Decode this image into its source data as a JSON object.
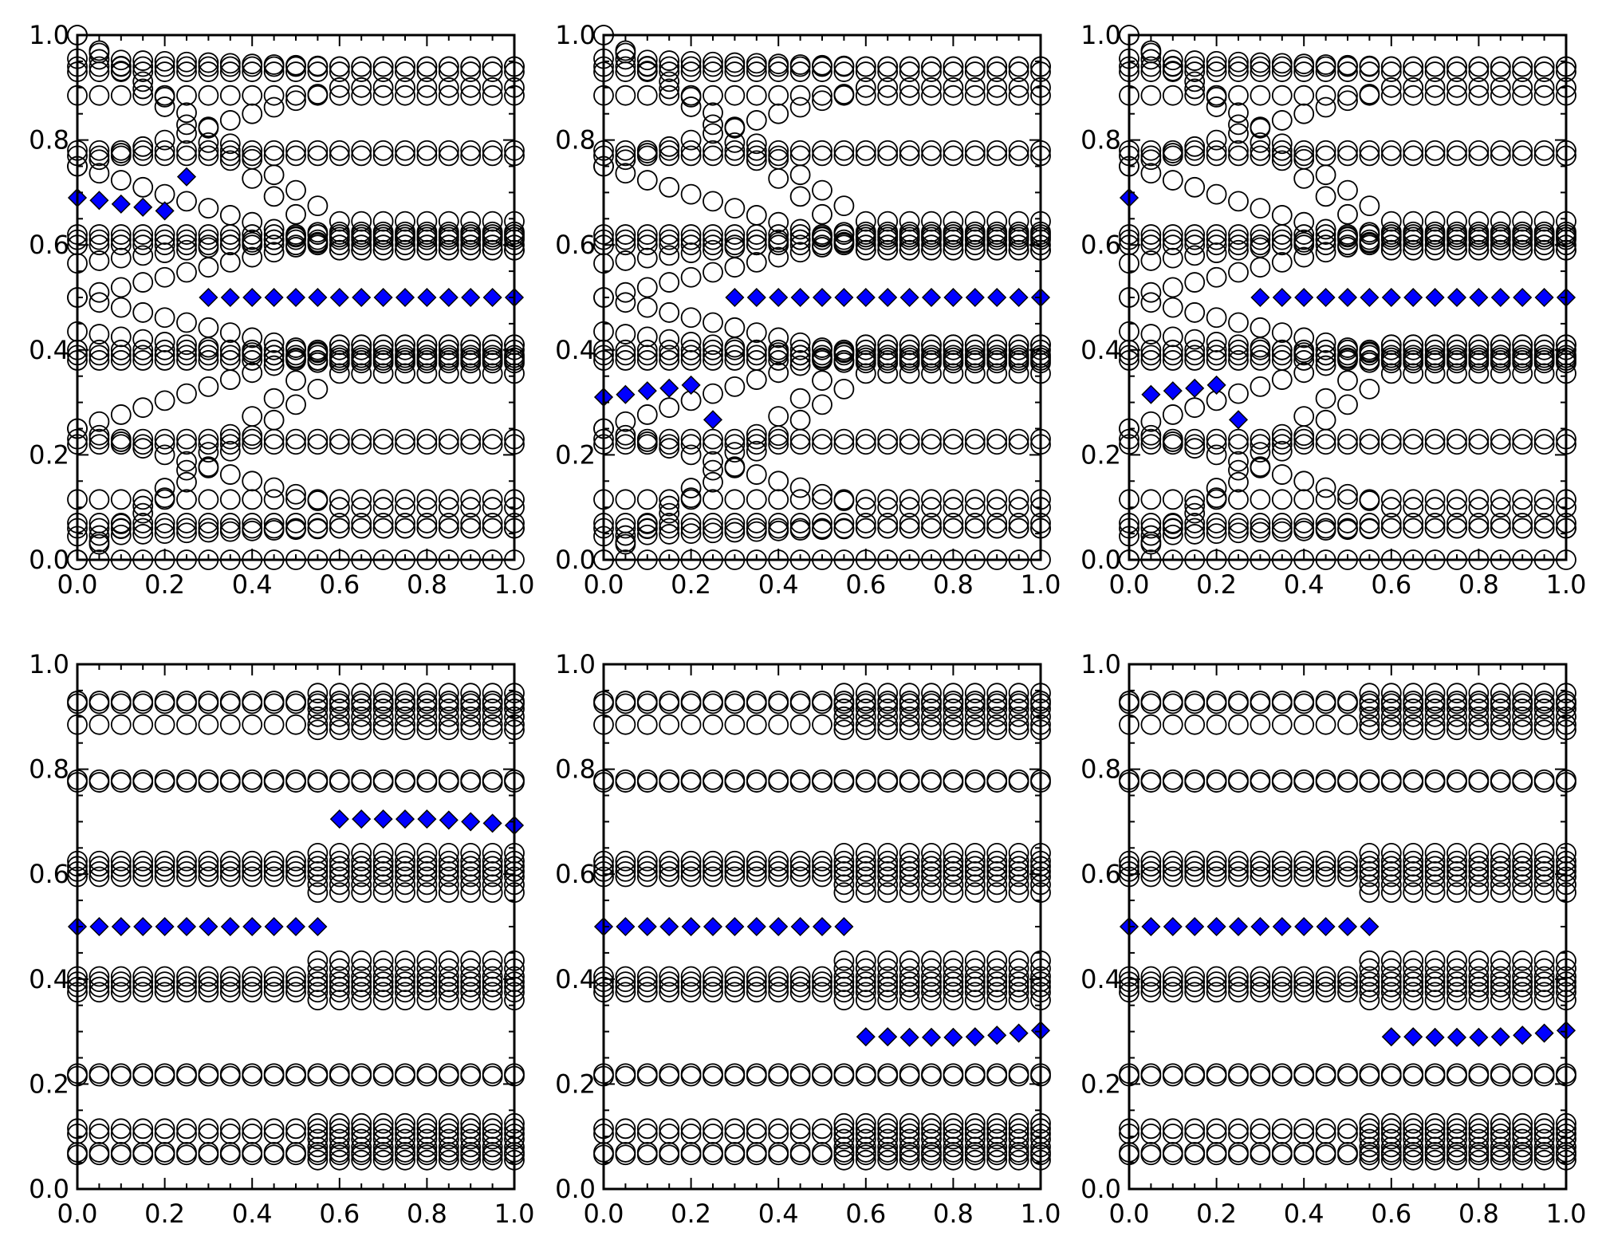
{
  "chart_data": {
    "type": "scatter",
    "layout": "2 rows x 3 columns of panels",
    "xlim": [
      0.0,
      1.0
    ],
    "ylim": [
      0.0,
      1.0
    ],
    "xticks": [
      "0.0",
      "0.2",
      "0.4",
      "0.6",
      "0.8",
      "1.0"
    ],
    "yticks": [
      "0.0",
      "0.2",
      "0.4",
      "0.6",
      "0.8",
      "1.0"
    ],
    "x_samples": [
      0.0,
      0.05,
      0.1,
      0.15,
      0.2,
      0.25,
      0.3,
      0.35,
      0.4,
      0.45,
      0.5,
      0.55,
      0.6,
      0.65,
      0.7,
      0.75,
      0.8,
      0.85,
      0.9,
      0.95,
      1.0
    ],
    "colors": {
      "circle_series": "#000000",
      "highlight_series": "#0000ff"
    },
    "panels": [
      {
        "id": "top-left",
        "circle_pattern": "bifurcating",
        "highlighted": [
          [
            0.0,
            0.69
          ],
          [
            0.05,
            0.685
          ],
          [
            0.1,
            0.678
          ],
          [
            0.15,
            0.672
          ],
          [
            0.2,
            0.665
          ],
          [
            0.25,
            0.73
          ],
          [
            0.3,
            0.5
          ],
          [
            0.35,
            0.5
          ],
          [
            0.4,
            0.5
          ],
          [
            0.45,
            0.5
          ],
          [
            0.5,
            0.5
          ],
          [
            0.55,
            0.5
          ],
          [
            0.6,
            0.5
          ],
          [
            0.65,
            0.5
          ],
          [
            0.7,
            0.5
          ],
          [
            0.75,
            0.5
          ],
          [
            0.8,
            0.5
          ],
          [
            0.85,
            0.5
          ],
          [
            0.9,
            0.5
          ],
          [
            0.95,
            0.5
          ],
          [
            1.0,
            0.5
          ]
        ]
      },
      {
        "id": "top-middle",
        "circle_pattern": "bifurcating",
        "highlighted": [
          [
            0.0,
            0.31
          ],
          [
            0.05,
            0.315
          ],
          [
            0.1,
            0.322
          ],
          [
            0.15,
            0.327
          ],
          [
            0.2,
            0.333
          ],
          [
            0.25,
            0.267
          ],
          [
            0.3,
            0.5
          ],
          [
            0.35,
            0.5
          ],
          [
            0.4,
            0.5
          ],
          [
            0.45,
            0.5
          ],
          [
            0.5,
            0.5
          ],
          [
            0.55,
            0.5
          ],
          [
            0.6,
            0.5
          ],
          [
            0.65,
            0.5
          ],
          [
            0.7,
            0.5
          ],
          [
            0.75,
            0.5
          ],
          [
            0.8,
            0.5
          ],
          [
            0.85,
            0.5
          ],
          [
            0.9,
            0.5
          ],
          [
            0.95,
            0.5
          ],
          [
            1.0,
            0.5
          ]
        ]
      },
      {
        "id": "top-right",
        "circle_pattern": "bifurcating",
        "highlighted": [
          [
            0.0,
            0.69
          ],
          [
            0.05,
            0.315
          ],
          [
            0.1,
            0.322
          ],
          [
            0.15,
            0.327
          ],
          [
            0.2,
            0.333
          ],
          [
            0.25,
            0.267
          ],
          [
            0.3,
            0.5
          ],
          [
            0.35,
            0.5
          ],
          [
            0.4,
            0.5
          ],
          [
            0.45,
            0.5
          ],
          [
            0.5,
            0.5
          ],
          [
            0.55,
            0.5
          ],
          [
            0.6,
            0.5
          ],
          [
            0.65,
            0.5
          ],
          [
            0.7,
            0.5
          ],
          [
            0.75,
            0.5
          ],
          [
            0.8,
            0.5
          ],
          [
            0.85,
            0.5
          ],
          [
            0.9,
            0.5
          ],
          [
            0.95,
            0.5
          ],
          [
            1.0,
            0.5
          ]
        ]
      },
      {
        "id": "bottom-left",
        "circle_pattern": "banded",
        "highlighted": [
          [
            0.0,
            0.5
          ],
          [
            0.05,
            0.5
          ],
          [
            0.1,
            0.5
          ],
          [
            0.15,
            0.5
          ],
          [
            0.2,
            0.5
          ],
          [
            0.25,
            0.5
          ],
          [
            0.3,
            0.5
          ],
          [
            0.35,
            0.5
          ],
          [
            0.4,
            0.5
          ],
          [
            0.45,
            0.5
          ],
          [
            0.5,
            0.5
          ],
          [
            0.55,
            0.5
          ],
          [
            0.6,
            0.705
          ],
          [
            0.65,
            0.705
          ],
          [
            0.7,
            0.705
          ],
          [
            0.75,
            0.705
          ],
          [
            0.8,
            0.705
          ],
          [
            0.85,
            0.703
          ],
          [
            0.9,
            0.7
          ],
          [
            0.95,
            0.697
          ],
          [
            1.0,
            0.693
          ]
        ]
      },
      {
        "id": "bottom-middle",
        "circle_pattern": "banded",
        "highlighted": [
          [
            0.0,
            0.5
          ],
          [
            0.05,
            0.5
          ],
          [
            0.1,
            0.5
          ],
          [
            0.15,
            0.5
          ],
          [
            0.2,
            0.5
          ],
          [
            0.25,
            0.5
          ],
          [
            0.3,
            0.5
          ],
          [
            0.35,
            0.5
          ],
          [
            0.4,
            0.5
          ],
          [
            0.45,
            0.5
          ],
          [
            0.5,
            0.5
          ],
          [
            0.55,
            0.5
          ],
          [
            0.6,
            0.29
          ],
          [
            0.65,
            0.29
          ],
          [
            0.7,
            0.289
          ],
          [
            0.75,
            0.289
          ],
          [
            0.8,
            0.289
          ],
          [
            0.85,
            0.29
          ],
          [
            0.9,
            0.293
          ],
          [
            0.95,
            0.297
          ],
          [
            1.0,
            0.302
          ]
        ]
      },
      {
        "id": "bottom-right",
        "circle_pattern": "banded",
        "highlighted": [
          [
            0.0,
            0.5
          ],
          [
            0.05,
            0.5
          ],
          [
            0.1,
            0.5
          ],
          [
            0.15,
            0.5
          ],
          [
            0.2,
            0.5
          ],
          [
            0.25,
            0.5
          ],
          [
            0.3,
            0.5
          ],
          [
            0.35,
            0.5
          ],
          [
            0.4,
            0.5
          ],
          [
            0.45,
            0.5
          ],
          [
            0.5,
            0.5
          ],
          [
            0.55,
            0.5
          ],
          [
            0.6,
            0.29
          ],
          [
            0.65,
            0.29
          ],
          [
            0.7,
            0.289
          ],
          [
            0.75,
            0.289
          ],
          [
            0.8,
            0.289
          ],
          [
            0.85,
            0.29
          ],
          [
            0.9,
            0.293
          ],
          [
            0.95,
            0.297
          ],
          [
            1.0,
            0.302
          ]
        ]
      }
    ],
    "circle_levels": {
      "bifurcating_constant": [
        0.0,
        0.06,
        0.07,
        0.115,
        0.22,
        0.23,
        0.38,
        0.39,
        0.4,
        0.6,
        0.61,
        0.62,
        0.77,
        0.78,
        0.885,
        0.93,
        0.94
      ],
      "bifurcating_branches": [
        {
          "start": 0.0,
          "end": 0.355
        },
        {
          "start": 0.0,
          "end": 0.41
        },
        {
          "start": 0.25,
          "end": 0.1
        },
        {
          "start": 0.25,
          "end": 0.41
        },
        {
          "start": 0.75,
          "end": 0.59
        },
        {
          "start": 0.75,
          "end": 0.9
        },
        {
          "start": 1.0,
          "end": 0.645
        },
        {
          "start": 1.0,
          "end": 0.59
        },
        {
          "start": 0.5,
          "end": 0.385
        },
        {
          "start": 0.5,
          "end": 0.615
        },
        {
          "start": 0.435,
          "end": 0.375
        },
        {
          "start": 0.565,
          "end": 0.625
        },
        {
          "start": 0.045,
          "end": 0.06
        },
        {
          "start": 0.955,
          "end": 0.94
        }
      ],
      "banded": [
        0.065,
        0.07,
        0.105,
        0.115,
        0.215,
        0.22,
        0.375,
        0.385,
        0.395,
        0.405,
        0.595,
        0.605,
        0.615,
        0.625,
        0.775,
        0.78,
        0.885,
        0.925,
        0.93
      ],
      "banded_spread_levels": [
        0.055,
        0.08,
        0.095,
        0.125,
        0.36,
        0.42,
        0.435,
        0.565,
        0.58,
        0.64,
        0.875,
        0.9,
        0.915,
        0.945
      ]
    }
  }
}
